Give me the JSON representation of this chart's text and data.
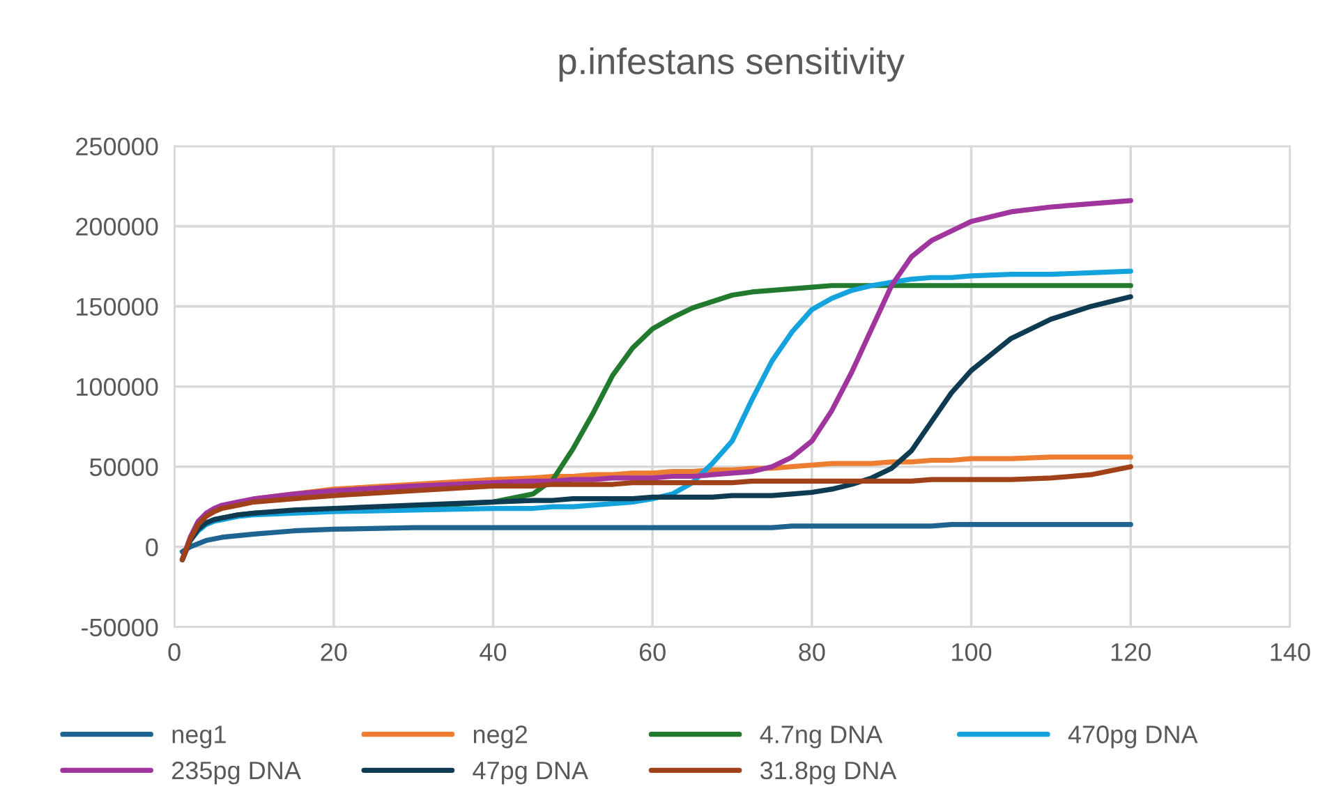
{
  "chart_data": {
    "type": "line",
    "title": "p.infestans sensitivity",
    "x": [
      1,
      2,
      3,
      4,
      5,
      6,
      8,
      10,
      15,
      20,
      30,
      40,
      45,
      47.5,
      50,
      52.5,
      55,
      57.5,
      60,
      62.5,
      65,
      67.5,
      70,
      72.5,
      75,
      77.5,
      80,
      82.5,
      85,
      87.5,
      90,
      92.5,
      95,
      97.5,
      100,
      105,
      110,
      115,
      120
    ],
    "series": [
      {
        "name": "neg1",
        "color": "#1f6391",
        "values": [
          -3000,
          0,
          2000,
          4000,
          5000,
          6000,
          7000,
          8000,
          10000,
          11000,
          12000,
          12000,
          12000,
          12000,
          12000,
          12000,
          12000,
          12000,
          12000,
          12000,
          12000,
          12000,
          12000,
          12000,
          12000,
          13000,
          13000,
          13000,
          13000,
          13000,
          13000,
          13000,
          13000,
          14000,
          14000,
          14000,
          14000,
          14000,
          14000
        ]
      },
      {
        "name": "neg2",
        "color": "#ed7d31",
        "values": [
          null,
          null,
          null,
          null,
          null,
          null,
          null,
          30000,
          33000,
          36000,
          39000,
          42000,
          43000,
          44000,
          44000,
          45000,
          45000,
          46000,
          46000,
          47000,
          47000,
          48000,
          48000,
          49000,
          49000,
          50000,
          51000,
          52000,
          52000,
          52000,
          53000,
          53000,
          54000,
          54000,
          55000,
          55000,
          56000,
          56000,
          56000
        ]
      },
      {
        "name": "4.7ng DNA",
        "color": "#217a2e",
        "values": [
          null,
          null,
          11000,
          15000,
          17000,
          18000,
          20000,
          21000,
          22000,
          23000,
          25000,
          28000,
          33000,
          42000,
          61000,
          83000,
          107000,
          124000,
          136000,
          143000,
          149000,
          153000,
          157000,
          159000,
          160000,
          161000,
          162000,
          163000,
          163000,
          163000,
          163000,
          163000,
          163000,
          163000,
          163000,
          163000,
          163000,
          163000,
          163000
        ]
      },
      {
        "name": "470pg DNA",
        "color": "#15a3dd",
        "values": [
          -8000,
          4000,
          10000,
          14000,
          16000,
          17000,
          19000,
          20000,
          21000,
          22000,
          23000,
          24000,
          24000,
          25000,
          25000,
          26000,
          27000,
          28000,
          30000,
          33000,
          40000,
          52000,
          66000,
          92000,
          116000,
          134000,
          148000,
          155000,
          160000,
          163000,
          165000,
          167000,
          168000,
          168000,
          169000,
          170000,
          170000,
          171000,
          172000
        ]
      },
      {
        "name": "235pg DNA",
        "color": "#a0359e",
        "values": [
          -8000,
          6000,
          16000,
          21000,
          24000,
          26000,
          28000,
          30000,
          33000,
          35000,
          38000,
          40000,
          41000,
          41000,
          42000,
          42000,
          43000,
          43000,
          43000,
          44000,
          44000,
          45000,
          46000,
          47000,
          50000,
          56000,
          66000,
          85000,
          109000,
          136000,
          163000,
          181000,
          191000,
          197000,
          203000,
          209000,
          212000,
          214000,
          216000
        ]
      },
      {
        "name": "47pg DNA",
        "color": "#0e3a52",
        "values": [
          -8000,
          4000,
          11000,
          15000,
          17000,
          18000,
          20000,
          21000,
          23000,
          24000,
          26000,
          28000,
          29000,
          29000,
          30000,
          30000,
          30000,
          30000,
          31000,
          31000,
          31000,
          31000,
          32000,
          32000,
          32000,
          33000,
          34000,
          36000,
          39000,
          43000,
          49000,
          60000,
          78000,
          96000,
          110000,
          130000,
          142000,
          150000,
          156000
        ]
      },
      {
        "name": "31.8pg DNA",
        "color": "#a0411a",
        "values": [
          -8000,
          5000,
          14000,
          19000,
          22000,
          24000,
          26000,
          28000,
          30000,
          32000,
          35000,
          38000,
          38000,
          39000,
          39000,
          39000,
          39000,
          40000,
          40000,
          40000,
          40000,
          40000,
          40000,
          41000,
          41000,
          41000,
          41000,
          41000,
          41000,
          41000,
          41000,
          41000,
          42000,
          42000,
          42000,
          42000,
          43000,
          45000,
          50000
        ]
      }
    ],
    "xlim": [
      0,
      140
    ],
    "xticks": [
      0,
      20,
      40,
      60,
      80,
      100,
      120,
      140
    ],
    "ylim": [
      -50000,
      250000
    ],
    "yticks": [
      -50000,
      0,
      50000,
      100000,
      150000,
      200000,
      250000
    ],
    "grid": true,
    "legend": "bottom",
    "marker": "none",
    "line_style": "solid"
  }
}
